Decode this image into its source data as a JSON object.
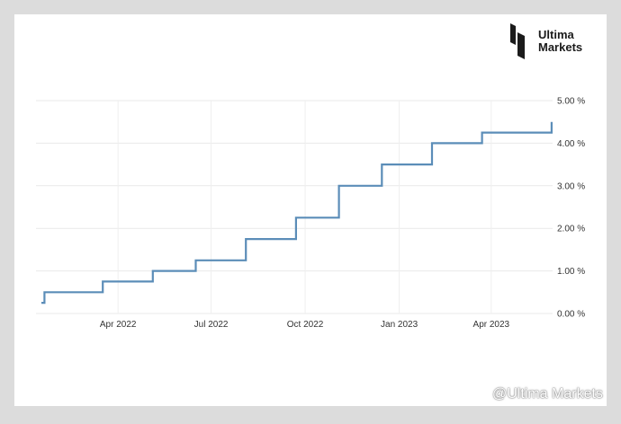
{
  "brand": {
    "line1": "Ultima",
    "line2": "Markets"
  },
  "watermark": {
    "text": "@Ultima Markets",
    "icon": "weibo-icon"
  },
  "chart_data": {
    "type": "line",
    "step": true,
    "title": "",
    "xlabel": "",
    "ylabel": "",
    "x_tick_labels": [
      "Apr 2022",
      "Jul 2022",
      "Oct 2022",
      "Jan 2023",
      "Apr 2023"
    ],
    "x_ticks": [
      "2022-04-01",
      "2022-07-01",
      "2022-10-01",
      "2023-01-01",
      "2023-04-01"
    ],
    "y_tick_labels": [
      "0.00 %",
      "1.00 %",
      "2.00 %",
      "3.00 %",
      "4.00 %",
      "5.00 %"
    ],
    "y_ticks": [
      0,
      1,
      2,
      3,
      4,
      5
    ],
    "ylim": [
      0,
      5
    ],
    "xlim": [
      "2022-01-16",
      "2023-05-31"
    ],
    "grid": true,
    "line_color": "#5b8db8",
    "series": [
      {
        "name": "",
        "x": [
          "2022-01-16",
          "2022-01-19",
          "2022-03-17",
          "2022-05-05",
          "2022-06-16",
          "2022-08-04",
          "2022-09-22",
          "2022-11-03",
          "2022-12-15",
          "2023-02-02",
          "2023-03-23",
          "2023-05-11",
          "2023-05-30"
        ],
        "y": [
          0.25,
          0.5,
          0.75,
          1.0,
          1.25,
          1.75,
          2.25,
          3.0,
          3.5,
          4.0,
          4.25,
          4.25,
          4.5
        ]
      }
    ]
  }
}
